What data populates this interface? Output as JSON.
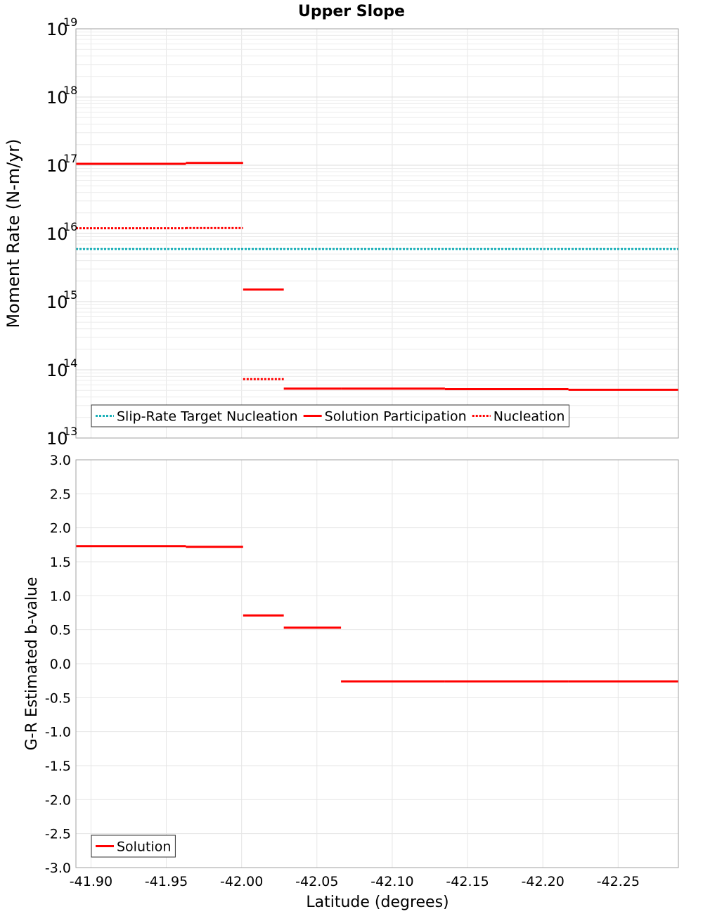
{
  "chart_data": [
    {
      "type": "line",
      "title": "Upper Slope",
      "xlabel": "",
      "ylabel": "Moment Rate (N-m/yr)",
      "x_scale": "reversed",
      "y_scale": "log",
      "xlim": [
        -41.89,
        -42.29
      ],
      "ylim": [
        10000000000000.0,
        1e+19
      ],
      "y_ticks": [
        {
          "base": "10",
          "exp": "13"
        },
        {
          "base": "10",
          "exp": "14"
        },
        {
          "base": "10",
          "exp": "15"
        },
        {
          "base": "10",
          "exp": "16"
        },
        {
          "base": "10",
          "exp": "17"
        },
        {
          "base": "10",
          "exp": "18"
        },
        {
          "base": "10",
          "exp": "19"
        }
      ],
      "grid": true,
      "legend": {
        "position": "bottom-left",
        "entries": [
          "Slip-Rate Target Nucleation",
          "Solution Participation",
          "Nucleation"
        ]
      },
      "series": [
        {
          "name": "Slip-Rate Target Nucleation",
          "color": "#19b0b8",
          "style": "dotted",
          "segments": [
            {
              "x1": -41.89,
              "x2": -42.29,
              "y": 5900000000000000.0
            }
          ]
        },
        {
          "name": "Solution Participation",
          "color": "#ff0000",
          "style": "solid",
          "segments": [
            {
              "x1": -41.89,
              "x2": -41.963,
              "y": 1.05e+17
            },
            {
              "x1": -41.963,
              "x2": -42.001,
              "y": 1.08e+17
            },
            {
              "x1": -42.001,
              "x2": -42.028,
              "y": 1500000000000000.0
            },
            {
              "x1": -42.028,
              "x2": -42.066,
              "y": 53000000000000.0
            },
            {
              "x1": -42.066,
              "x2": -42.135,
              "y": 53000000000000.0
            },
            {
              "x1": -42.135,
              "x2": -42.217,
              "y": 52000000000000.0
            },
            {
              "x1": -42.217,
              "x2": -42.29,
              "y": 51000000000000.0
            }
          ]
        },
        {
          "name": "Nucleation",
          "color": "#ff0000",
          "style": "dotted",
          "segments": [
            {
              "x1": -41.89,
              "x2": -41.963,
              "y": 1.19e+16
            },
            {
              "x1": -41.963,
              "x2": -42.001,
              "y": 1.2e+16
            },
            {
              "x1": -42.001,
              "x2": -42.028,
              "y": 73000000000000.0
            }
          ]
        }
      ]
    },
    {
      "type": "line",
      "title": "",
      "xlabel": "Latitude (degrees)",
      "ylabel": "G-R Estimated b-value",
      "x_scale": "reversed",
      "xlim": [
        -41.89,
        -42.29
      ],
      "ylim": [
        -3.0,
        3.0
      ],
      "x_ticks": [
        "-41.90",
        "-41.95",
        "-42.00",
        "-42.05",
        "-42.10",
        "-42.15",
        "-42.20",
        "-42.25"
      ],
      "x_tick_values": [
        -41.9,
        -41.95,
        -42.0,
        -42.05,
        -42.1,
        -42.15,
        -42.2,
        -42.25
      ],
      "y_ticks": [
        "3.0",
        "2.5",
        "2.0",
        "1.5",
        "1.0",
        "0.5",
        "0.0",
        "-0.5",
        "-1.0",
        "-1.5",
        "-2.0",
        "-2.5",
        "-3.0"
      ],
      "y_tick_values": [
        3.0,
        2.5,
        2.0,
        1.5,
        1.0,
        0.5,
        0.0,
        -0.5,
        -1.0,
        -1.5,
        -2.0,
        -2.5,
        -3.0
      ],
      "grid": true,
      "legend": {
        "position": "bottom-left",
        "entries": [
          "Solution"
        ]
      },
      "series": [
        {
          "name": "Solution",
          "color": "#ff0000",
          "style": "solid",
          "segments": [
            {
              "x1": -41.89,
              "x2": -41.963,
              "y": 1.73
            },
            {
              "x1": -41.963,
              "x2": -42.001,
              "y": 1.72
            },
            {
              "x1": -42.001,
              "x2": -42.028,
              "y": 0.71
            },
            {
              "x1": -42.028,
              "x2": -42.066,
              "y": 0.53
            },
            {
              "x1": -42.066,
              "x2": -42.135,
              "y": -0.26
            },
            {
              "x1": -42.135,
              "x2": -42.217,
              "y": -0.26
            },
            {
              "x1": -42.217,
              "x2": -42.29,
              "y": -0.26
            }
          ]
        }
      ]
    }
  ]
}
